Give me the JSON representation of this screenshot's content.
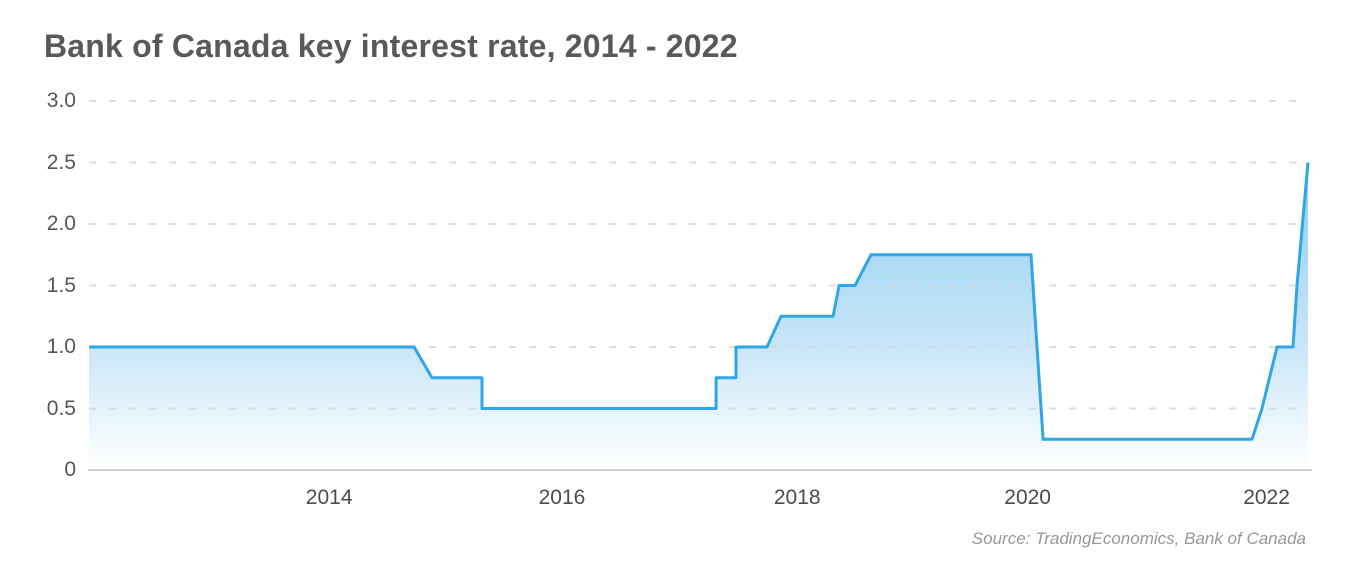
{
  "header": {
    "title": "Bank of Canada key interest rate, 2014 - 2022"
  },
  "footer": {
    "source": "Source: TradingEconomics, Bank of Canada"
  },
  "colors": {
    "background": "#ffffff",
    "line": "#2fa6e8",
    "fill_top": "#8ccff2",
    "fill_upper_mid": "#abdaf4",
    "fill_lower_mid": "#c9e6f8",
    "fill_bottom": "#ffffff",
    "grid": "#d7d7d7",
    "baseline": "#d2d2d3",
    "title_text": "#58595b",
    "tick_text": "#55565a",
    "source_text": "#97989b"
  },
  "chart_data": {
    "type": "area",
    "title": "Bank of Canada key interest rate, 2014 - 2022",
    "unit": "%",
    "xlabel": "",
    "ylabel": "",
    "ylim": [
      0,
      3.0
    ],
    "grid": "horizontal-dashed",
    "legend": "none",
    "yticks": [
      {
        "label": "3.0",
        "value": 3.0
      },
      {
        "label": "2.5",
        "value": 2.5
      },
      {
        "label": "2.0",
        "value": 2.0
      },
      {
        "label": "1.5",
        "value": 1.5
      },
      {
        "label": "1.0",
        "value": 1.0
      },
      {
        "label": "0.5",
        "value": 0.5
      },
      {
        "label": "0",
        "value": 0
      }
    ],
    "xticks": [
      {
        "label": "2014",
        "pos": 0.197
      },
      {
        "label": "2016",
        "pos": 0.388
      },
      {
        "label": "2018",
        "pos": 0.581
      },
      {
        "label": "2020",
        "pos": 0.77
      },
      {
        "label": "2022",
        "pos": 0.966
      }
    ],
    "step_values_sequence": [
      1.0,
      0.75,
      0.5,
      0.75,
      1.0,
      1.25,
      1.5,
      1.75,
      0.25,
      0.5,
      1.0,
      1.5,
      2.5
    ],
    "series": [
      {
        "name": "Bank of Canada key interest rate (%)",
        "vertices": [
          [
            0.0,
            1.0
          ],
          [
            0.2667,
            1.0
          ],
          [
            0.2814,
            0.75
          ],
          [
            0.3224,
            0.75
          ],
          [
            0.3224,
            0.5
          ],
          [
            0.5144,
            0.5
          ],
          [
            0.5144,
            0.75
          ],
          [
            0.5308,
            0.75
          ],
          [
            0.5308,
            1.0
          ],
          [
            0.5562,
            1.0
          ],
          [
            0.5677,
            1.25
          ],
          [
            0.6104,
            1.25
          ],
          [
            0.6153,
            1.5
          ],
          [
            0.6284,
            1.5
          ],
          [
            0.6415,
            1.75
          ],
          [
            0.7728,
            1.75
          ],
          [
            0.7827,
            0.25
          ],
          [
            0.9541,
            0.25
          ],
          [
            0.9623,
            0.5
          ],
          [
            0.9746,
            1.0
          ],
          [
            0.9877,
            1.0
          ],
          [
            0.991,
            1.5
          ],
          [
            1.0,
            2.5
          ]
        ]
      }
    ]
  }
}
